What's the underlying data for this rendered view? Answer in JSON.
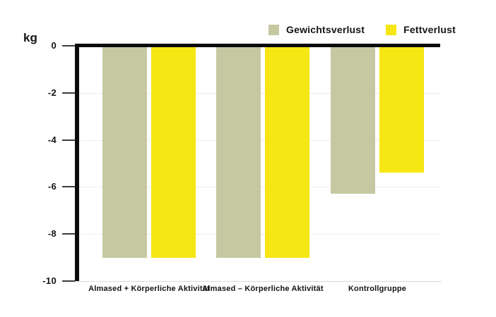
{
  "chart_data": {
    "type": "bar",
    "title": "",
    "unit_label": "kg",
    "categories": [
      "Almased + Körperliche Aktivität",
      "Almased – Körperliche Aktivität",
      "Kontrollgruppe"
    ],
    "series": [
      {
        "name": "Gewichtsverlust",
        "color": "#c6c8a2",
        "values": [
          -9.0,
          -9.0,
          -6.3
        ]
      },
      {
        "name": "Fettverlust",
        "color": "#f5e614",
        "values": [
          -9.0,
          -9.0,
          -5.4
        ]
      }
    ],
    "y_tick_labels": [
      "0",
      "-2",
      "-4",
      "-6",
      "-8",
      "-10"
    ],
    "y_tick_values": [
      0,
      -2,
      -4,
      -6,
      -8,
      -10
    ],
    "ylim": [
      0,
      -10
    ],
    "grid": true,
    "legend_position": "top-right",
    "axis_color": "#0b0b0b",
    "gridline_color": "#ececec"
  }
}
